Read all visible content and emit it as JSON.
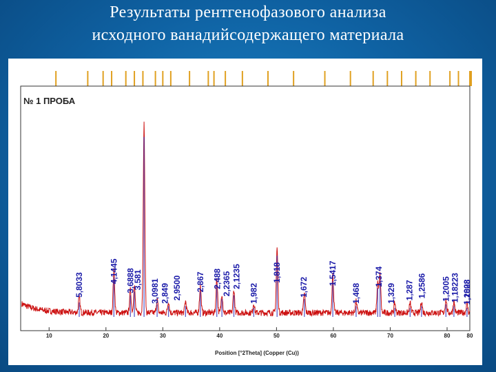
{
  "slide": {
    "title_line1": "Результаты рентгенофазового анализа",
    "title_line2": "исходного ванадийсодержащего материала"
  },
  "chart_data": {
    "type": "line",
    "title": "№ 1 ПРОБА",
    "xlabel": "Position [°2Theta] (Copper (Cu))",
    "ylabel": "",
    "xlim": [
      5,
      84
    ],
    "x_ticks": [
      "10",
      "20",
      "30",
      "40",
      "50",
      "60",
      "70",
      "80",
      "80"
    ],
    "grid": false,
    "series": [
      {
        "color": "#cc1111",
        "peaks": [
          {
            "x": 15.3,
            "h": 0.08
          },
          {
            "x": 21.4,
            "h": 0.22
          },
          {
            "x": 24.3,
            "h": 0.12
          },
          {
            "x": 25.0,
            "h": 0.14
          },
          {
            "x": 26.7,
            "h": 1.0
          },
          {
            "x": 29.0,
            "h": 0.07
          },
          {
            "x": 31.0,
            "h": 0.06
          },
          {
            "x": 34.0,
            "h": 0.06
          },
          {
            "x": 36.6,
            "h": 0.14
          },
          {
            "x": 39.5,
            "h": 0.18
          },
          {
            "x": 40.4,
            "h": 0.1
          },
          {
            "x": 42.5,
            "h": 0.12
          },
          {
            "x": 46.0,
            "h": 0.05
          },
          {
            "x": 50.1,
            "h": 0.34
          },
          {
            "x": 54.9,
            "h": 0.1
          },
          {
            "x": 59.9,
            "h": 0.2
          },
          {
            "x": 64.0,
            "h": 0.06
          },
          {
            "x": 67.8,
            "h": 0.16
          },
          {
            "x": 68.2,
            "h": 0.2
          },
          {
            "x": 70.8,
            "h": 0.05
          },
          {
            "x": 73.5,
            "h": 0.05
          },
          {
            "x": 75.5,
            "h": 0.06
          },
          {
            "x": 79.8,
            "h": 0.07
          },
          {
            "x": 81.2,
            "h": 0.06
          },
          {
            "x": 83.5,
            "h": 0.05
          }
        ]
      }
    ],
    "peak_labels": [
      {
        "text": "5,8033",
        "x": 15.3,
        "y_frac": 0.12
      },
      {
        "text": "4,1445",
        "x": 21.4,
        "y_frac": 0.25
      },
      {
        "text": "3,6888",
        "x": 24.3,
        "y_frac": 0.16
      },
      {
        "text": "3,581",
        "x": 25.6,
        "y_frac": 0.19
      },
      {
        "text": "3,0981",
        "x": 28.6,
        "y_frac": 0.06
      },
      {
        "text": "2,849",
        "x": 30.4,
        "y_frac": 0.06
      },
      {
        "text": "2,9500",
        "x": 32.5,
        "y_frac": 0.09
      },
      {
        "text": "2,867",
        "x": 36.6,
        "y_frac": 0.17
      },
      {
        "text": "2,488",
        "x": 39.6,
        "y_frac": 0.2
      },
      {
        "text": "2,2365",
        "x": 41.2,
        "y_frac": 0.13
      },
      {
        "text": "2,1235",
        "x": 43.0,
        "y_frac": 0.2
      },
      {
        "text": "1,982",
        "x": 46.0,
        "y_frac": 0.06
      },
      {
        "text": "1,818",
        "x": 50.1,
        "y_frac": 0.26
      },
      {
        "text": "1,672",
        "x": 54.8,
        "y_frac": 0.12
      },
      {
        "text": "1,5417",
        "x": 59.9,
        "y_frac": 0.23
      },
      {
        "text": "1,468",
        "x": 64.0,
        "y_frac": 0.06
      },
      {
        "text": "1,374",
        "x": 68.0,
        "y_frac": 0.22
      },
      {
        "text": "1,329",
        "x": 70.2,
        "y_frac": 0.06
      },
      {
        "text": "1,287",
        "x": 73.4,
        "y_frac": 0.09
      },
      {
        "text": "1,2586",
        "x": 75.6,
        "y_frac": 0.11
      },
      {
        "text": "1,2005",
        "x": 79.8,
        "y_frac": 0.08
      },
      {
        "text": "1,18223",
        "x": 81.4,
        "y_frac": 0.07
      },
      {
        "text": "1,2008",
        "x": 83.6,
        "y_frac": 0.05
      },
      {
        "text": "1,1828",
        "x": 85.6,
        "y_frac": 0.05
      }
    ],
    "reference_marks_x": [
      11.2,
      16.8,
      19.5,
      21.0,
      23.5,
      25.0,
      26.5,
      28.7,
      30.0,
      31.4,
      34.7,
      38.0,
      39.0,
      41.0,
      44.0,
      48.5,
      53.0,
      58.5,
      63.0,
      67.0,
      69.5,
      72.0,
      74.5,
      77.0,
      80.5,
      82.0,
      84.0,
      85.5
    ]
  }
}
